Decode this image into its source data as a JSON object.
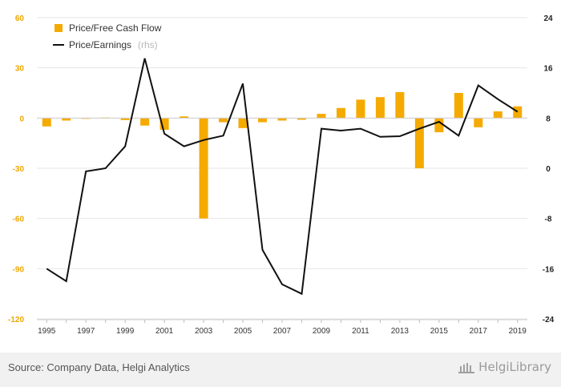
{
  "chart_data": {
    "type": "bar+line",
    "categories": [
      "1995",
      "1996",
      "1997",
      "1998",
      "1999",
      "2000",
      "2001",
      "2002",
      "2003",
      "2004",
      "2005",
      "2006",
      "2007",
      "2008",
      "2009",
      "2010",
      "2011",
      "2012",
      "2013",
      "2014",
      "2015",
      "2016",
      "2017",
      "2018",
      "2019"
    ],
    "x_tick_labels": [
      "1995",
      "1997",
      "1999",
      "2001",
      "2003",
      "2005",
      "2007",
      "2009",
      "2011",
      "2013",
      "2015",
      "2017",
      "2019"
    ],
    "series": [
      {
        "name": "Price/Free Cash Flow",
        "type": "bar",
        "axis": "left",
        "color": "#f5aa00",
        "values": [
          -5,
          -1.5,
          0,
          0.3,
          -1.2,
          -4.5,
          -7,
          1,
          -60,
          -2.5,
          -6,
          -2.5,
          -1.5,
          -1,
          2.5,
          6,
          11,
          12.5,
          15.5,
          -30,
          -8.5,
          15,
          -5.5,
          4,
          7
        ]
      },
      {
        "name": "Price/Earnings",
        "name_note": "(rhs)",
        "type": "line",
        "axis": "right",
        "color": "#111111",
        "values": [
          -16,
          -18,
          -0.5,
          0,
          3.5,
          17.5,
          5.5,
          3.5,
          4.5,
          5.2,
          13.5,
          -13,
          -18.5,
          -20,
          6.3,
          6,
          6.3,
          5,
          5.1,
          6.3,
          7.4,
          5.2,
          13.2,
          11,
          9
        ]
      }
    ],
    "y_left": {
      "min": -120,
      "max": 60,
      "ticks": [
        60,
        30,
        0,
        -30,
        -60,
        -90,
        -120
      ]
    },
    "y_right": {
      "min": -24,
      "max": 24,
      "ticks": [
        24,
        16,
        8,
        0,
        -8,
        -16,
        -24
      ]
    },
    "grid": true,
    "legend": "top-left"
  },
  "footer": {
    "source": "Source: Company Data, Helgi Analytics",
    "brand": "HelgiLibrary"
  }
}
